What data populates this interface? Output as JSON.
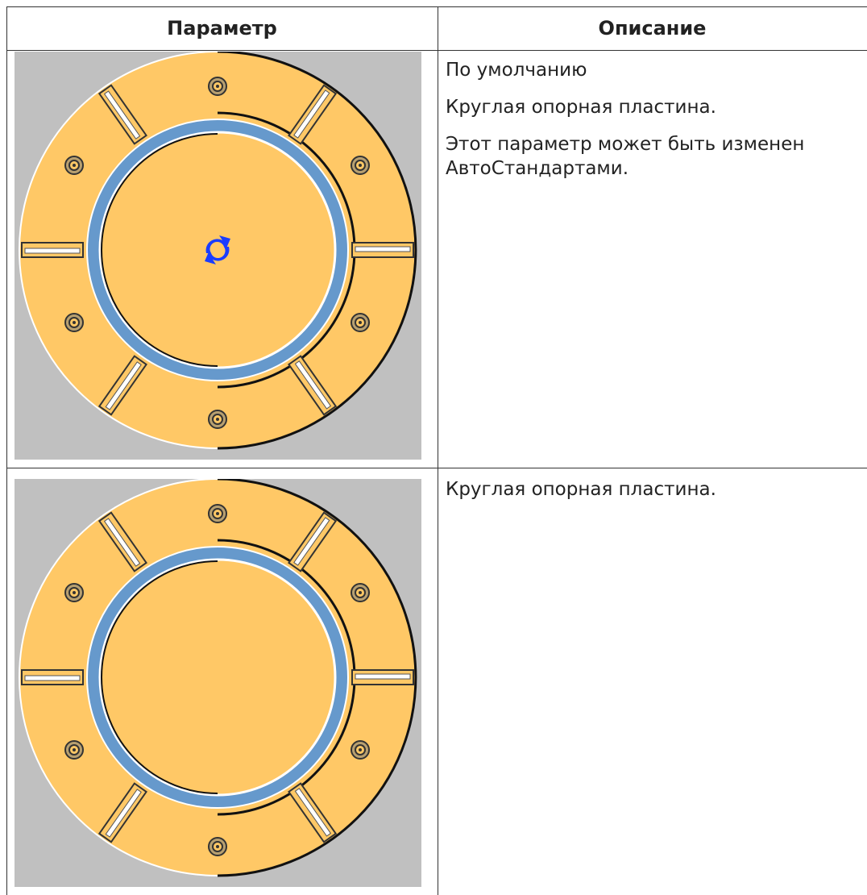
{
  "table": {
    "headers": [
      "Параметр",
      "Описание"
    ],
    "rows": [
      [
        [
          "По умолчанию",
          "Круглая опорная пластина.",
          "Этот параметр может быть изменен АвтоСтандартами."
        ]
      ],
      [
        [
          "Круглая опорная пластина."
        ]
      ]
    ]
  }
}
